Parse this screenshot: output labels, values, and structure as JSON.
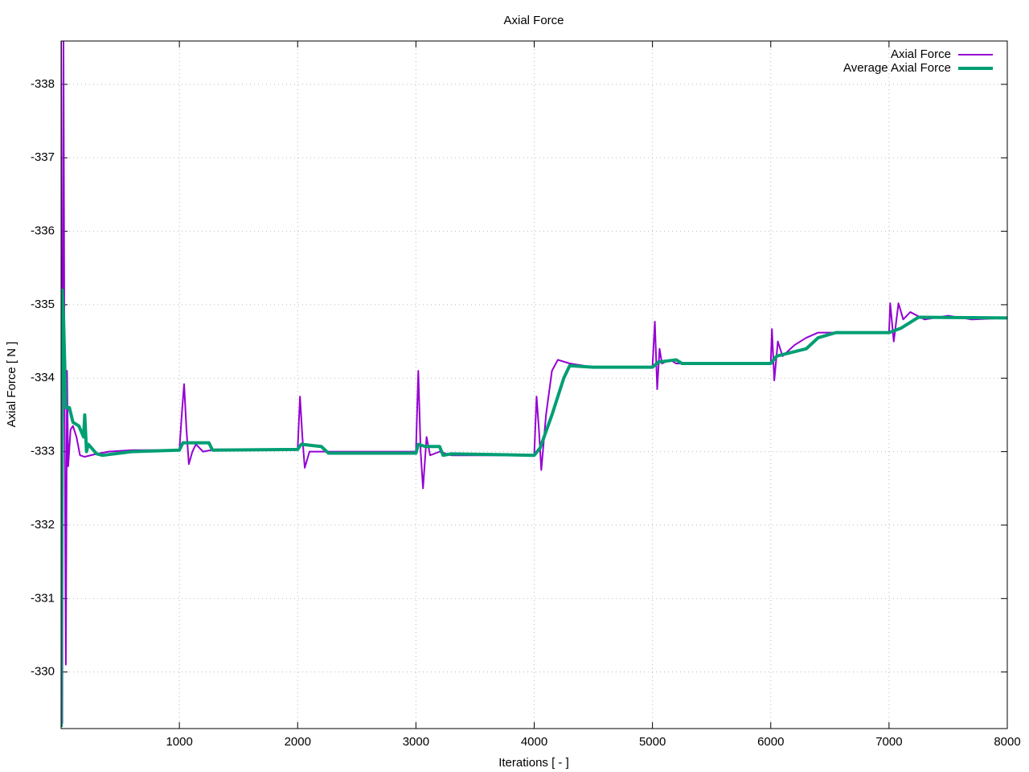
{
  "chart_data": {
    "type": "line",
    "title": "Axial Force",
    "xlabel": "Iterations [ - ]",
    "ylabel": "Axial Force [ N ]",
    "xlim": [
      0,
      8000
    ],
    "ylim": [
      -329.23,
      -338.59
    ],
    "xticks": [
      1000,
      2000,
      3000,
      4000,
      5000,
      6000,
      7000,
      8000
    ],
    "yticks": [
      -338,
      -337,
      -336,
      -335,
      -334,
      -333,
      -332,
      -331,
      -330
    ],
    "grid": true,
    "legend": "upper right",
    "series": [
      {
        "name": "Axial Force",
        "color": "#9400d3",
        "width": 2,
        "x": [
          0,
          10,
          20,
          30,
          40,
          50,
          60,
          80,
          100,
          130,
          160,
          200,
          300,
          400,
          600,
          1000,
          1020,
          1040,
          1060,
          1080,
          1110,
          1140,
          1200,
          1300,
          2000,
          2020,
          2040,
          2060,
          2100,
          2150,
          2300,
          3000,
          3020,
          3040,
          3060,
          3090,
          3120,
          3200,
          3300,
          4000,
          4020,
          4040,
          4060,
          4100,
          4150,
          4200,
          4300,
          4500,
          5000,
          5020,
          5040,
          5060,
          5080,
          5150,
          5200,
          5300,
          6000,
          6010,
          6030,
          6060,
          6100,
          6200,
          6300,
          6400,
          7000,
          7010,
          7040,
          7080,
          7120,
          7180,
          7300,
          7500,
          7700,
          8000
        ],
        "values": [
          -338.6,
          -329.3,
          -338.6,
          -333.5,
          -330.1,
          -334.1,
          -332.8,
          -333.3,
          -333.35,
          -333.2,
          -332.95,
          -332.93,
          -332.97,
          -333.0,
          -333.02,
          -333.02,
          -333.5,
          -333.92,
          -333.3,
          -332.83,
          -333.0,
          -333.1,
          -333.0,
          -333.03,
          -333.03,
          -333.75,
          -333.2,
          -332.78,
          -333.0,
          -333.0,
          -333.0,
          -333.0,
          -334.1,
          -333.0,
          -332.5,
          -333.2,
          -332.95,
          -333.0,
          -332.95,
          -332.95,
          -333.75,
          -333.3,
          -332.75,
          -333.5,
          -334.1,
          -334.25,
          -334.2,
          -334.15,
          -334.15,
          -334.77,
          -333.85,
          -334.4,
          -334.2,
          -334.25,
          -334.2,
          -334.2,
          -334.2,
          -334.67,
          -333.97,
          -334.5,
          -334.3,
          -334.45,
          -334.55,
          -334.62,
          -334.62,
          -335.02,
          -334.5,
          -335.02,
          -334.8,
          -334.9,
          -334.8,
          -334.85,
          -334.8,
          -334.82
        ]
      },
      {
        "name": "Average Axial Force",
        "color": "#009e73",
        "width": 4,
        "x": [
          0,
          10,
          20,
          40,
          70,
          100,
          150,
          190,
          200,
          215,
          230,
          300,
          350,
          600,
          1000,
          1030,
          1250,
          1280,
          2000,
          2030,
          2200,
          2260,
          3000,
          3020,
          3080,
          3200,
          3230,
          3300,
          4000,
          4050,
          4150,
          4250,
          4300,
          4500,
          5000,
          5050,
          5200,
          5250,
          6000,
          6050,
          6300,
          6400,
          6550,
          7000,
          7100,
          7250,
          8000
        ],
        "values": [
          -329.25,
          -335.2,
          -334.85,
          -333.6,
          -333.6,
          -333.4,
          -333.35,
          -333.2,
          -333.5,
          -333.0,
          -333.1,
          -332.97,
          -332.95,
          -333.0,
          -333.02,
          -333.12,
          -333.12,
          -333.02,
          -333.03,
          -333.1,
          -333.07,
          -332.98,
          -332.98,
          -333.1,
          -333.07,
          -333.07,
          -332.95,
          -332.97,
          -332.95,
          -333.05,
          -333.5,
          -334.0,
          -334.17,
          -334.15,
          -334.15,
          -334.22,
          -334.25,
          -334.2,
          -334.2,
          -334.3,
          -334.4,
          -334.55,
          -334.62,
          -334.62,
          -334.68,
          -334.83,
          -334.82
        ]
      }
    ]
  }
}
